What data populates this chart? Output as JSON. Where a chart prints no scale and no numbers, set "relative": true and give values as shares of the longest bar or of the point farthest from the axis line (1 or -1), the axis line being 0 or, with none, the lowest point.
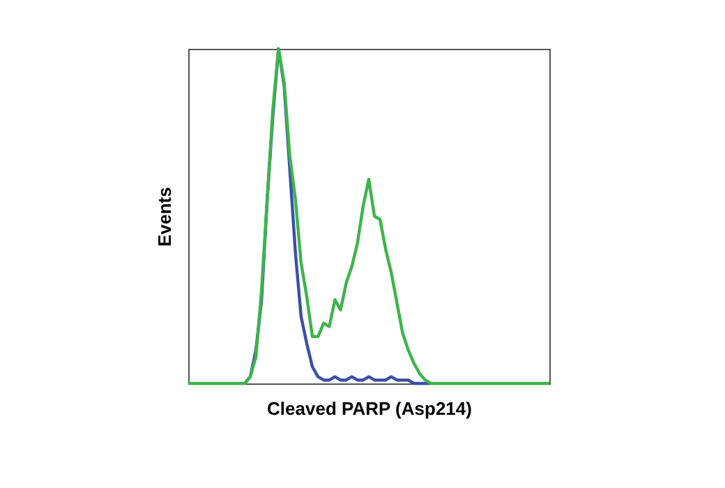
{
  "chart_data": {
    "type": "line",
    "relative": true,
    "xlabel": "Cleaved PARP (Asp214)",
    "ylabel": "Events",
    "tick_labels": false,
    "grid": false,
    "legend": false,
    "marker": "none",
    "line_style": "solid",
    "categories": [
      null,
      null,
      null,
      null,
      null,
      null,
      null,
      null,
      null,
      null,
      null,
      null,
      null,
      null,
      null,
      null,
      null,
      null,
      null,
      null,
      null,
      null,
      null,
      null,
      null,
      null,
      null,
      null,
      null,
      null,
      null,
      null,
      null,
      null,
      null,
      null,
      null,
      null,
      null,
      null,
      null,
      null,
      null,
      null,
      null,
      null,
      null,
      null,
      null,
      null,
      null,
      null,
      null,
      null,
      null,
      null,
      null,
      null,
      null,
      null,
      null,
      null,
      null,
      null,
      null
    ],
    "series": [
      {
        "color": "#3a4fa8",
        "values": [
          null,
          null,
          null,
          null,
          null,
          null,
          null,
          null,
          null,
          null,
          0,
          0.02,
          0.1,
          0.25,
          0.55,
          0.8,
          1.0,
          0.89,
          0.64,
          0.39,
          0.2,
          0.12,
          0.05,
          0.02,
          0.01,
          0.01,
          0.02,
          0.01,
          0.01,
          0.02,
          0.01,
          0.01,
          0.02,
          0.01,
          0.01,
          0.01,
          0.02,
          0.01,
          0.01,
          0.01,
          0,
          0,
          0,
          0,
          null,
          null,
          null,
          null,
          null,
          null,
          null,
          null,
          null,
          null,
          null,
          null,
          null,
          null,
          null,
          null,
          null,
          null,
          null,
          null,
          null
        ]
      },
      {
        "color": "#3cb54a",
        "values": [
          0,
          0,
          0,
          0,
          0,
          0,
          0,
          0,
          0,
          0,
          0,
          0.02,
          0.08,
          0.28,
          0.55,
          0.82,
          1.0,
          0.9,
          0.68,
          0.55,
          0.36,
          0.26,
          0.14,
          0.14,
          0.18,
          0.17,
          0.25,
          0.22,
          0.3,
          0.35,
          0.42,
          0.53,
          0.61,
          0.5,
          0.49,
          0.4,
          0.33,
          0.24,
          0.15,
          0.1,
          0.06,
          0.03,
          0.01,
          0,
          0,
          0,
          0,
          0,
          0,
          0,
          0,
          0,
          0,
          0,
          0,
          0,
          0,
          0,
          0,
          0,
          0,
          0,
          0,
          0,
          0
        ]
      }
    ]
  }
}
